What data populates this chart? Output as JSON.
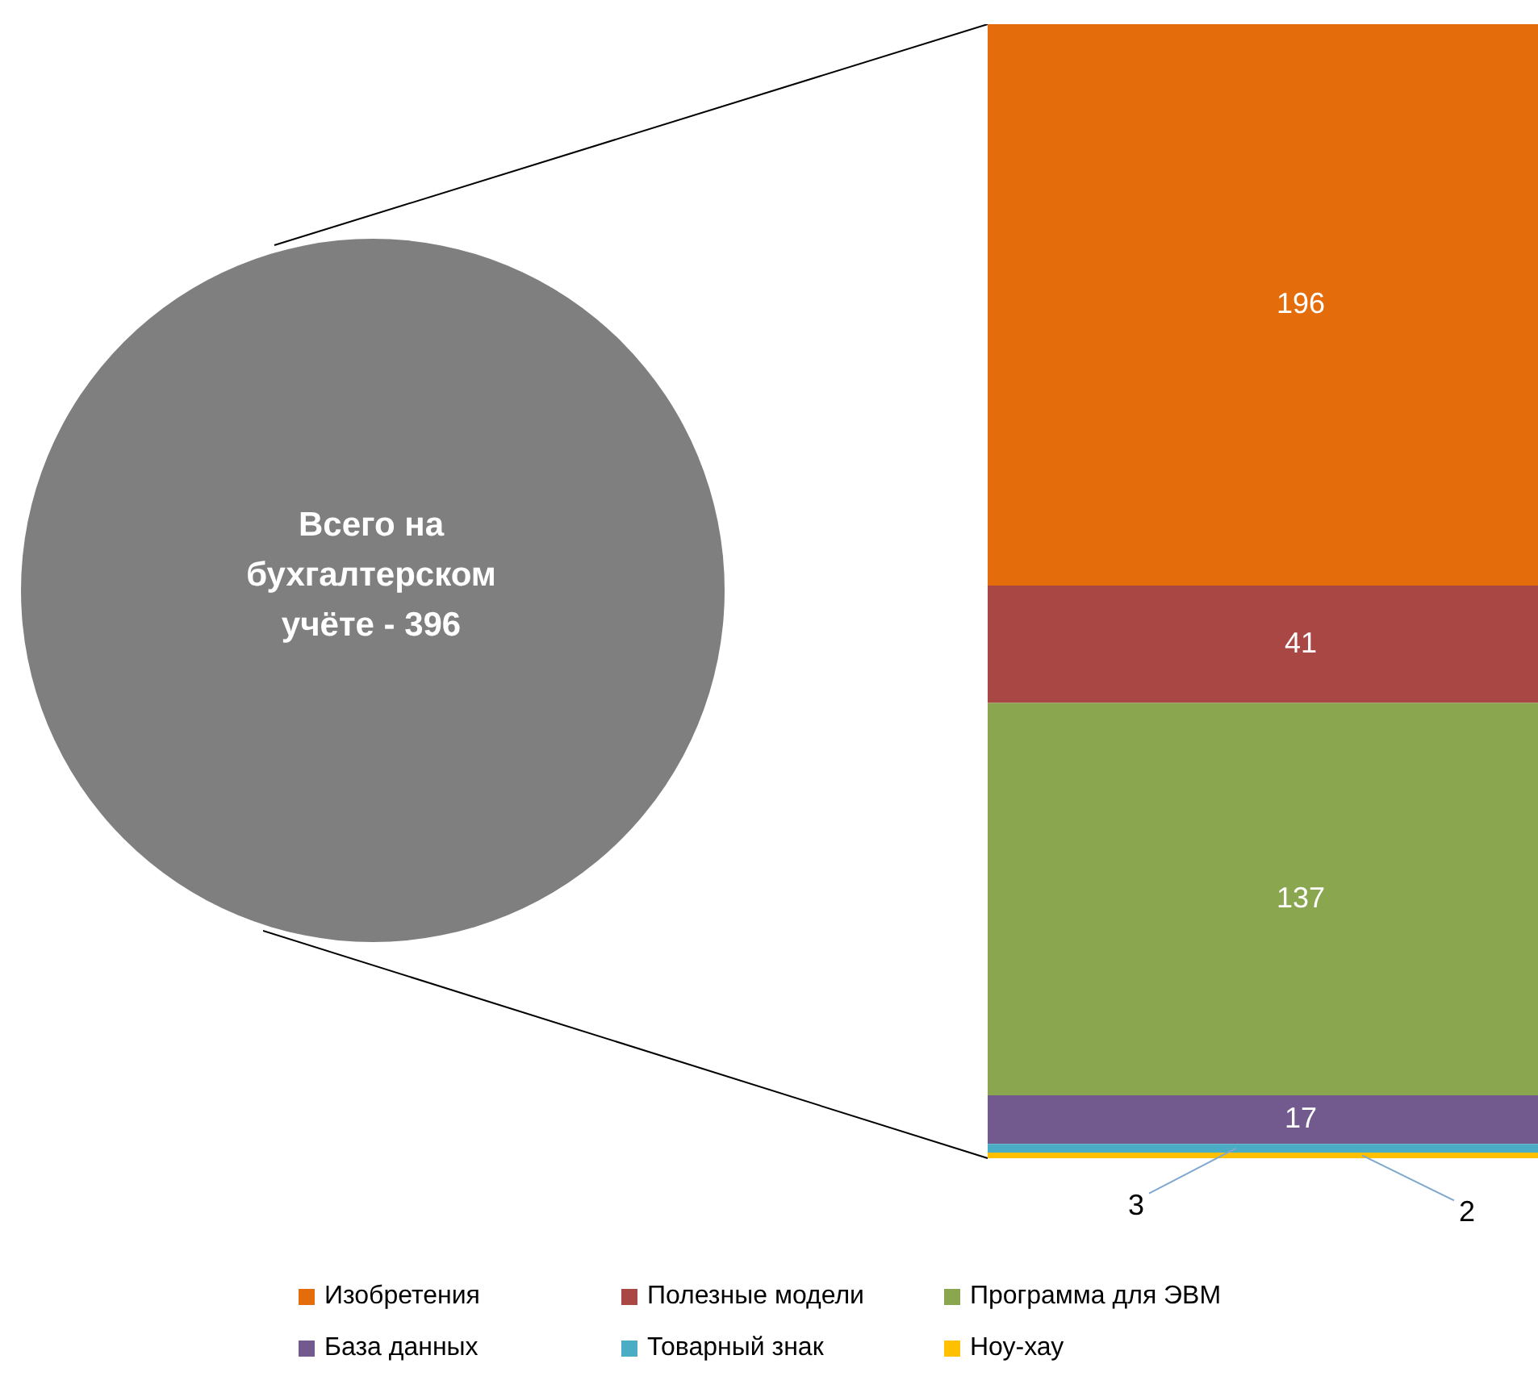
{
  "chart_data": {
    "type": "bar",
    "stacked": true,
    "categories": [
      null
    ],
    "data_labels": true,
    "legend": "bottom",
    "annotations": [
      "Всего на бухгалтерском учёте - 396"
    ],
    "series": [
      {
        "name": "Ноу-хау",
        "color": "#ffc000",
        "values": [
          2
        ]
      },
      {
        "name": "Товарный знак",
        "color": "#4bacc6",
        "values": [
          3
        ]
      },
      {
        "name": "База данных",
        "color": "#725a8f",
        "values": [
          17
        ]
      },
      {
        "name": "Программа для ЭВМ",
        "color": "#8aa64f",
        "values": [
          137
        ]
      },
      {
        "name": "Полезные модели",
        "color": "#a94745",
        "values": [
          41
        ]
      },
      {
        "name": "Изобретения",
        "color": "#e46c0a",
        "values": [
          196
        ]
      }
    ]
  }
}
